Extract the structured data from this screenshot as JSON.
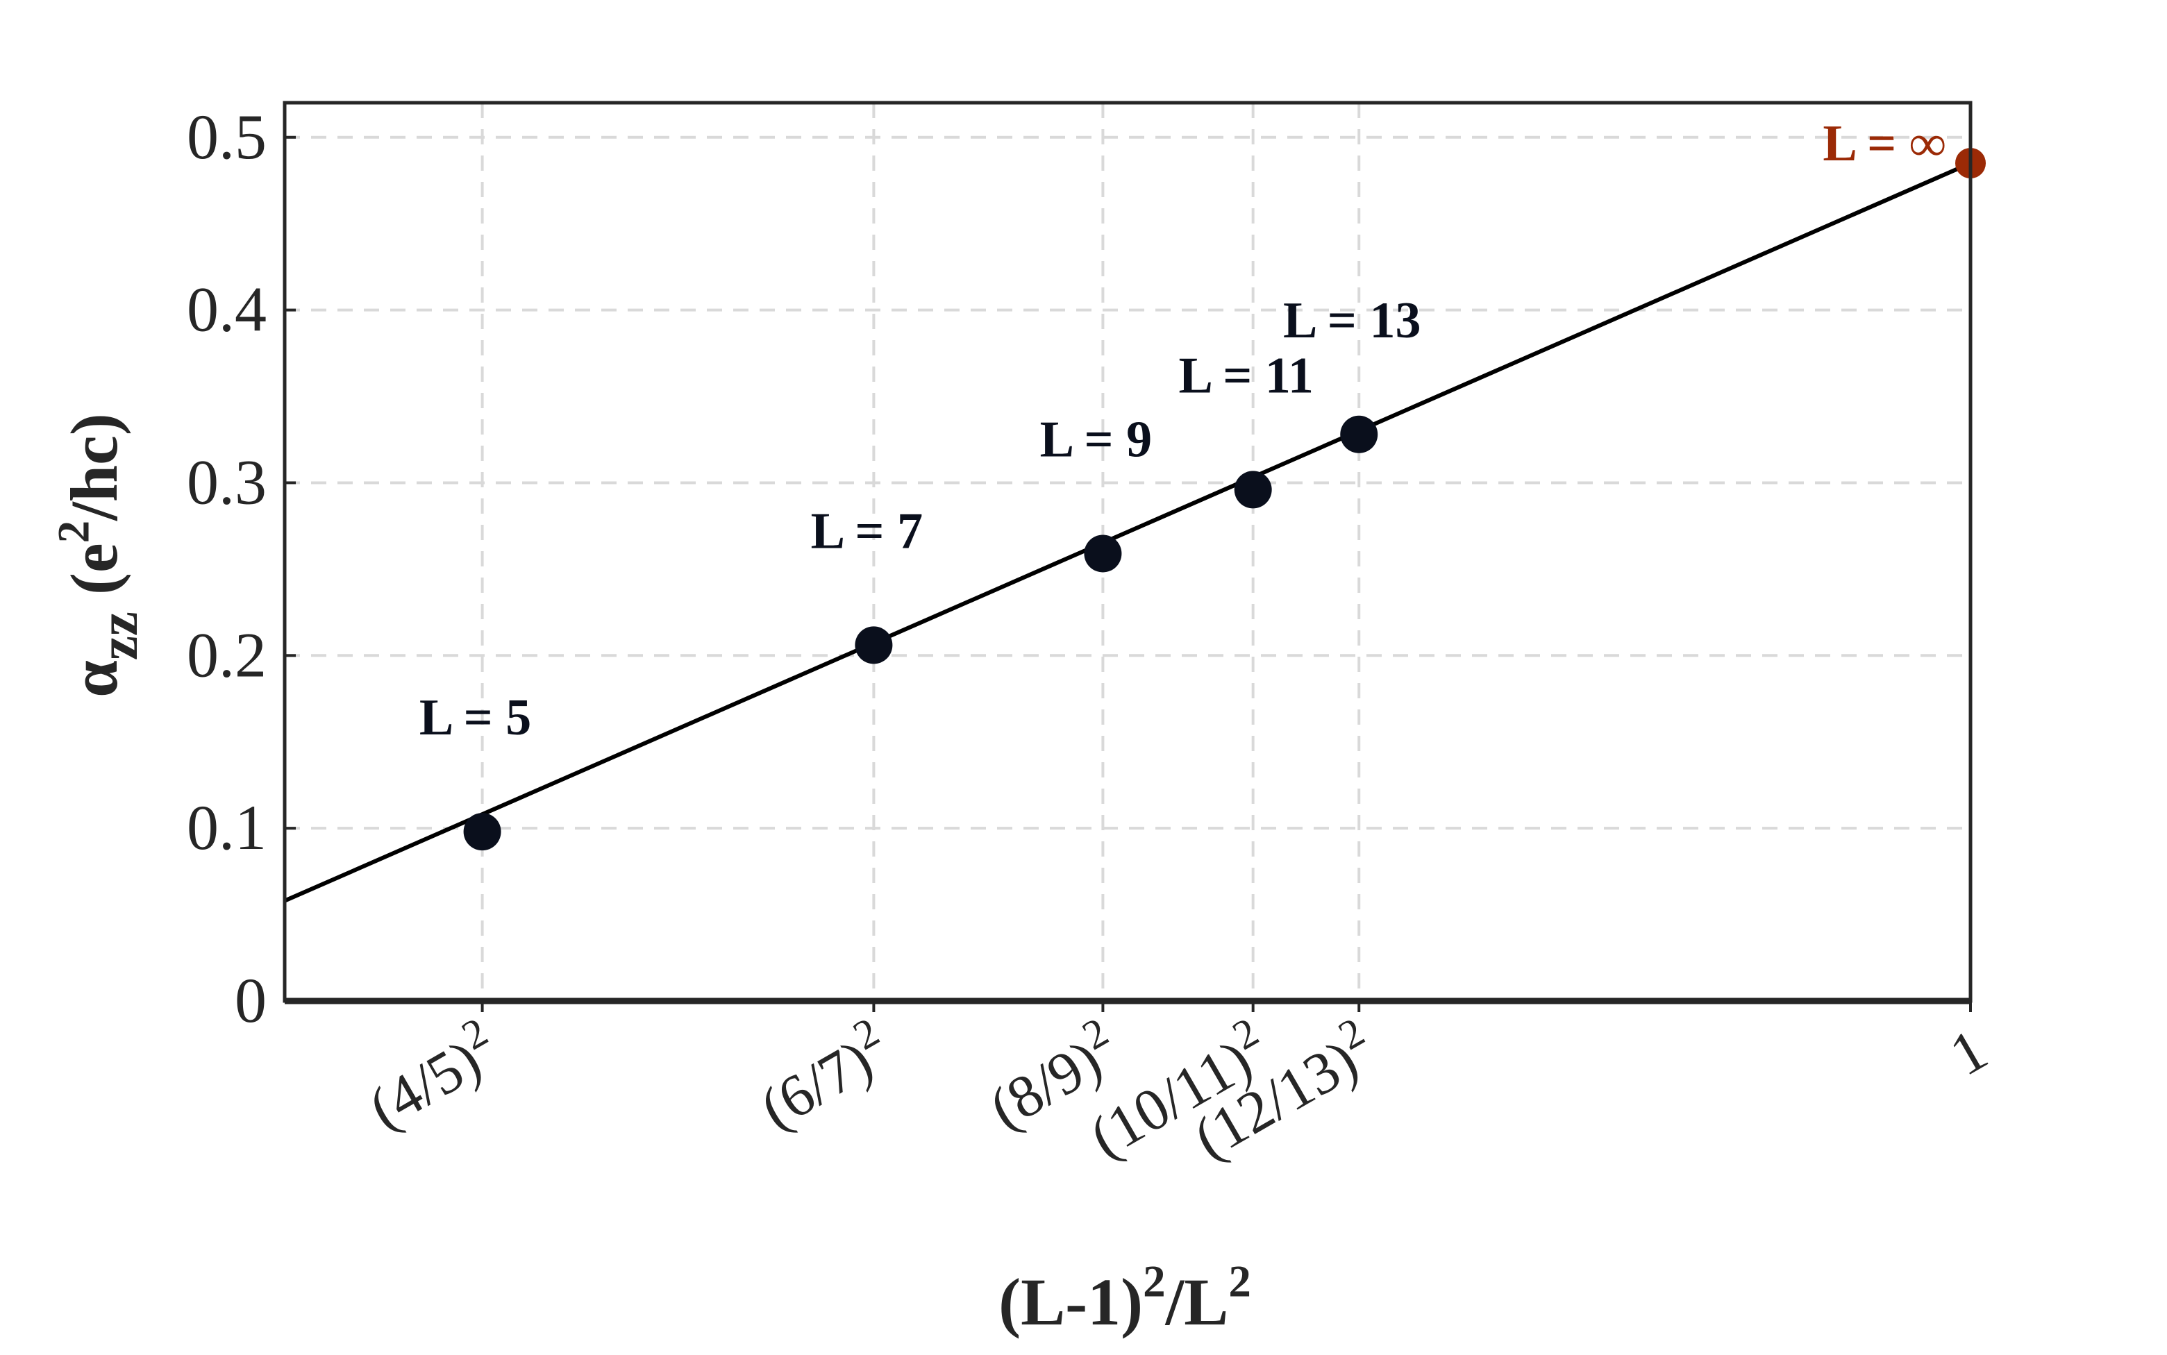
{
  "chart_data": {
    "type": "scatter",
    "title": "",
    "xlabel": "(L-1)^2/L^2",
    "ylabel": "α_zz (e^2/hc)",
    "ylim": [
      0,
      0.52
    ],
    "xlim": [
      0.5922,
      1.0
    ],
    "grid": true,
    "x_ticks": [
      {
        "value": 0.64,
        "base": "(4/5)",
        "exp": "2"
      },
      {
        "value": 0.734694,
        "base": "(6/7)",
        "exp": "2"
      },
      {
        "value": 0.790123,
        "base": "(8/9)",
        "exp": "2"
      },
      {
        "value": 0.826446,
        "base": "(10/11)",
        "exp": "2"
      },
      {
        "value": 0.852071,
        "base": "(12/13)",
        "exp": "2"
      },
      {
        "value": 1.0,
        "base": "1",
        "exp": ""
      }
    ],
    "y_ticks": [
      {
        "value": 0,
        "label": "0"
      },
      {
        "value": 0.1,
        "label": "0.1"
      },
      {
        "value": 0.2,
        "label": "0.2"
      },
      {
        "value": 0.3,
        "label": "0.3"
      },
      {
        "value": 0.4,
        "label": "0.4"
      },
      {
        "value": 0.5,
        "label": "0.5"
      }
    ],
    "series": [
      {
        "color": "#0a0f1c",
        "points": [
          {
            "x": 0.64,
            "y": 0.098,
            "label": "L = 5"
          },
          {
            "x": 0.734694,
            "y": 0.206,
            "label": "L = 7"
          },
          {
            "x": 0.790123,
            "y": 0.259,
            "label": "L = 9"
          },
          {
            "x": 0.826446,
            "y": 0.296,
            "label": "L = 11"
          },
          {
            "x": 0.852071,
            "y": 0.328,
            "label": "L = 13"
          }
        ]
      },
      {
        "color": "#9b2a06",
        "points": [
          {
            "x": 1.0,
            "y": 0.485,
            "label": "L = ∞"
          }
        ]
      }
    ],
    "fit_line": {
      "x": [
        0.5922,
        1.0
      ],
      "y": [
        0.058,
        0.485
      ],
      "color": "#000000"
    }
  }
}
